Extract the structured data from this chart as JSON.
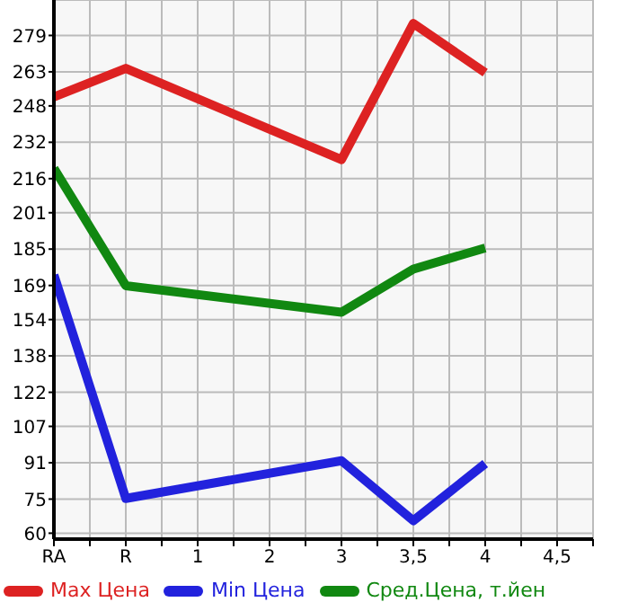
{
  "chart_data": {
    "type": "line",
    "categories": [
      "RA",
      "R",
      "1",
      "2",
      "3",
      "3,5",
      "4",
      "4,5"
    ],
    "series": [
      {
        "name": "Max Цена",
        "color": "#dd2222",
        "values": [
          252,
          264.5,
          null,
          null,
          224.4,
          284.3,
          262.6,
          null
        ]
      },
      {
        "name": "Min Цена",
        "color": "#2222dd",
        "values": [
          173.6,
          75.3,
          null,
          null,
          91.9,
          65.5,
          90.6,
          null
        ]
      },
      {
        "name": "Сред.Цена, т.йен",
        "color": "#118811",
        "values": [
          220.5,
          168.9,
          null,
          null,
          157.2,
          176.2,
          185.5,
          null
        ]
      }
    ],
    "ylim": [
      57.4,
      294.6
    ],
    "yticks": [
      60,
      75,
      91,
      107,
      122,
      138,
      154,
      169,
      185,
      201,
      216,
      232,
      248,
      263,
      279
    ],
    "grid": true,
    "legend": "bottom",
    "marker": "none",
    "line_style": "solid"
  }
}
